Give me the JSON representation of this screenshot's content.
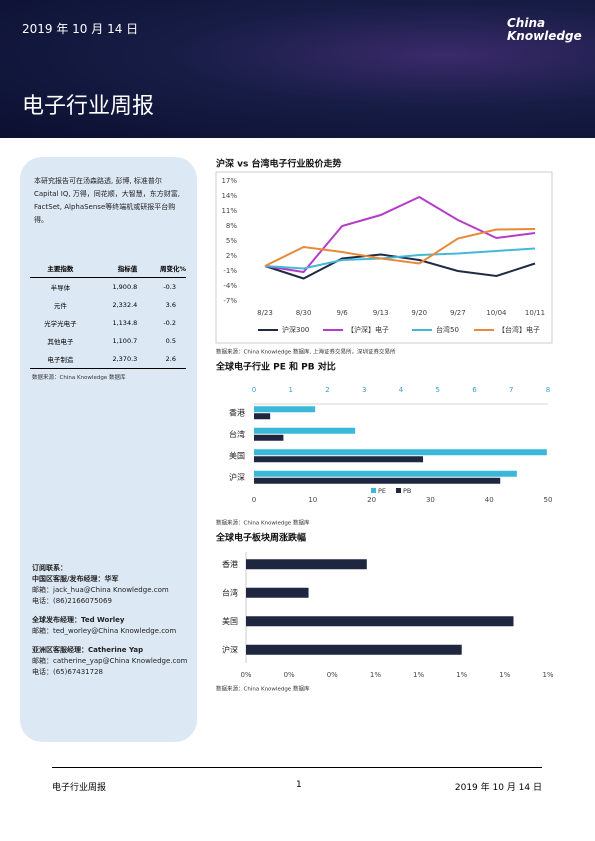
{
  "header": {
    "date": "2019 年 10 月 14 日",
    "logo": [
      "China",
      "Knowledge"
    ],
    "title": "电子行业周报"
  },
  "sidebar": {
    "intro": "本研究报告可在汤森路透, 彭博, 标准普尔Capital IQ, 万得，同花顺，大智慧，东方财富, FactSet, AlphaSense等终端机或研报平台购得。",
    "table": {
      "header": [
        "主要指数",
        "指标值",
        "周变化%"
      ],
      "rows": [
        [
          "半导体",
          "1,900.8",
          "-0.3"
        ],
        [
          "元件",
          "2,332.4",
          "3.6"
        ],
        [
          "光学光电子",
          "1,134.8",
          "-0.2"
        ],
        [
          "其他电子",
          "1,100.7",
          "0.5"
        ],
        [
          "电子制造",
          "2,370.3",
          "2.6"
        ]
      ]
    },
    "source": "数据来源：China Knowledge 数据库",
    "contacts_title": "订阅联系：",
    "contacts": [
      {
        "role": "中国区客服/发布经理：华军",
        "lines": [
          "邮箱：jack_hua@China Knowledge.com",
          "电话：(86)2166075069"
        ]
      },
      {
        "role": "全球发布经理：Ted Worley",
        "lines": [
          "邮箱：ted_worley@China Knowledge.com"
        ]
      },
      {
        "role": "亚洲区客服经理：Catherine Yap",
        "lines": [
          "邮箱：catherine_yap@China Knowledge.com",
          "电话：(65)67431728"
        ]
      }
    ]
  },
  "chart_data": [
    {
      "type": "line",
      "title": "沪深 vs 台湾电子行业股价走势",
      "categories": [
        "8/23",
        "8/30",
        "9/6",
        "9/13",
        "9/20",
        "9/27",
        "10/04",
        "10/11"
      ],
      "series": [
        {
          "name": "沪深300",
          "color": "#1f2a44",
          "values": [
            0,
            -2.5,
            1.5,
            2.3,
            1.2,
            -1,
            -2,
            0.5
          ]
        },
        {
          "name": "【沪深】电子",
          "color": "#b43cc8",
          "values": [
            0,
            -1.2,
            8,
            10.2,
            13.8,
            9.2,
            5.6,
            6.6
          ]
        },
        {
          "name": "台湾50",
          "color": "#45b8d8",
          "values": [
            0,
            -0.5,
            1.2,
            1.5,
            2.2,
            2.5,
            3,
            3.5
          ]
        },
        {
          "name": "【台湾】电子",
          "color": "#e8893a",
          "values": [
            0,
            3.8,
            2.8,
            1.5,
            0.5,
            5.5,
            7.3,
            7.4
          ]
        }
      ],
      "ylim": [
        -7,
        17
      ],
      "yticks": [
        {
          "value": 17,
          "label": "17%"
        },
        {
          "value": 14,
          "label": "14%"
        },
        {
          "value": 11,
          "label": "11%"
        },
        {
          "value": 8,
          "label": "8%"
        },
        {
          "value": 5,
          "label": "5%"
        },
        {
          "value": 2,
          "label": "2%"
        },
        {
          "value": -1,
          "label": "-1%"
        },
        {
          "value": -4,
          "label": "-4%"
        },
        {
          "value": -7,
          "label": "-7%"
        }
      ],
      "source": "数据来源：China Knowledge 数据库, 上海证券交易所，深圳证券交易所"
    },
    {
      "type": "hbar",
      "title": "全球电子行业 PE 和 PB 对比",
      "categories": [
        "香港",
        "台湾",
        "美国",
        "沪深"
      ],
      "series": [
        {
          "name": "PE",
          "color": "#3bb7d9",
          "values": [
            10.4,
            17.2,
            49.8,
            44.7
          ]
        },
        {
          "name": "PB",
          "color": "#1e2640",
          "axis": "x2",
          "values": [
            0.44,
            0.8,
            4.6,
            6.7
          ]
        }
      ],
      "xlim": [
        0,
        50
      ],
      "xticks": [
        0,
        10,
        20,
        30,
        40,
        50
      ],
      "x2lim": [
        0,
        8
      ],
      "x2ticks": [
        0,
        1,
        2,
        3,
        4,
        5,
        6,
        7,
        8
      ],
      "source": "数据来源：China Knowledge 数据库"
    },
    {
      "type": "hbar",
      "title": "全球电子板块周涨跌幅",
      "categories": [
        "香港",
        "台湾",
        "美国",
        "沪深"
      ],
      "color": "#1e2640",
      "values": [
        0.56,
        0.29,
        1.24,
        1.0
      ],
      "xlim": [
        0,
        1.4
      ],
      "xticks": [
        {
          "value": 0,
          "label": "0%"
        },
        {
          "value": 0.2,
          "label": "0%"
        },
        {
          "value": 0.4,
          "label": "0%"
        },
        {
          "value": 0.6,
          "label": "1%"
        },
        {
          "value": 0.8,
          "label": "1%"
        },
        {
          "value": 1.0,
          "label": "1%"
        },
        {
          "value": 1.2,
          "label": "1%"
        },
        {
          "value": 1.4,
          "label": "1%"
        }
      ],
      "source": "数据来源：China Knowledge 数据库"
    }
  ],
  "footer": {
    "left": "电子行业周报",
    "page": "1",
    "date": "2019 年 10 月 14 日"
  }
}
